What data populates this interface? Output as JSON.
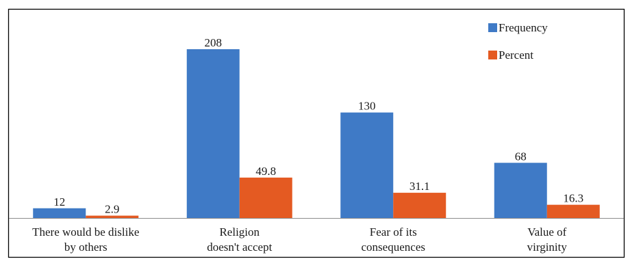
{
  "chart_data": {
    "type": "bar",
    "categories": [
      [
        "There would be dislike",
        "by others"
      ],
      [
        "Religion",
        "doesn't accept"
      ],
      [
        "Fear of its",
        "consequences"
      ],
      [
        "Value of",
        "virginity"
      ]
    ],
    "series": [
      {
        "name": "Frequency",
        "values": [
          12,
          208,
          130,
          68
        ],
        "labels": [
          "12",
          "208",
          "130",
          "68"
        ],
        "color": "#3f7ac6"
      },
      {
        "name": "Percent",
        "values": [
          2.9,
          49.8,
          31.1,
          16.3
        ],
        "labels": [
          "2.9",
          "49.8",
          "31.1",
          "16.3"
        ],
        "color": "#e45a22"
      }
    ],
    "ylim": [
      0,
      240
    ],
    "grid": false,
    "legend_position": "top-right"
  }
}
